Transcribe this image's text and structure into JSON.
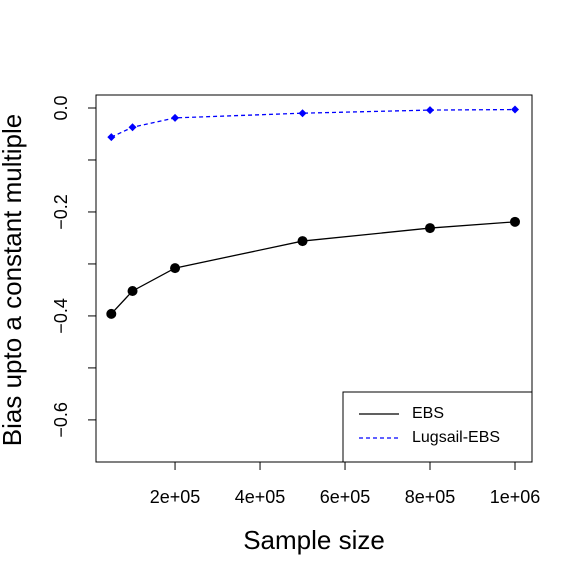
{
  "chart_data": {
    "type": "line",
    "x_label": "Sample size",
    "y_label": "Bias upto a constant multiple",
    "x": [
      50000,
      100000,
      200000,
      500000,
      800000,
      1000000
    ],
    "series": [
      {
        "name": "EBS",
        "color": "#000000",
        "dash": "solid",
        "marker": "circle",
        "values": [
          -0.396,
          -0.352,
          -0.308,
          -0.256,
          -0.231,
          -0.219
        ]
      },
      {
        "name": "Lugsail-EBS",
        "color": "#0000ff",
        "dash": "dashed",
        "marker": "diamond",
        "values": [
          -0.056,
          -0.037,
          -0.019,
          -0.01,
          -0.004,
          -0.003
        ]
      }
    ],
    "xlim": [
      14000,
      1040000
    ],
    "ylim": [
      -0.681,
      0.025
    ],
    "xticks": [
      {
        "value": 200000,
        "label": "2e+05"
      },
      {
        "value": 400000,
        "label": "4e+05"
      },
      {
        "value": 600000,
        "label": "6e+05"
      },
      {
        "value": 800000,
        "label": "8e+05"
      },
      {
        "value": 1000000,
        "label": "1e+06"
      }
    ],
    "yticks": [
      {
        "value": 0,
        "label": "0.0"
      },
      {
        "value": -0.2,
        "label": "−0.2"
      },
      {
        "value": -0.4,
        "label": "−0.4"
      },
      {
        "value": -0.6,
        "label": "−0.6"
      }
    ],
    "yminor_ticks": [
      -0.1,
      -0.3,
      -0.5
    ],
    "legend": "bottom-right",
    "grid": false
  }
}
